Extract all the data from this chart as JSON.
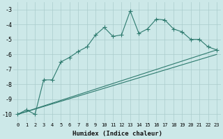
{
  "xlabel": "Humidex (Indice chaleur)",
  "bg_color": "#cce8e8",
  "grid_color": "#aacccc",
  "line_color": "#2d7a6e",
  "xlim": [
    -0.5,
    23.5
  ],
  "ylim": [
    -10.5,
    -2.5
  ],
  "yticks": [
    -10,
    -9,
    -8,
    -7,
    -6,
    -5,
    -4,
    -3
  ],
  "xticks": [
    0,
    1,
    2,
    3,
    4,
    5,
    6,
    7,
    8,
    9,
    10,
    11,
    12,
    13,
    14,
    15,
    16,
    17,
    18,
    19,
    20,
    21,
    22,
    23
  ],
  "series1_x": [
    0,
    1,
    2,
    3,
    4,
    5,
    6,
    7,
    8,
    9,
    10,
    11,
    12,
    13,
    14,
    15,
    16,
    17,
    18,
    19,
    20,
    21,
    22,
    23
  ],
  "series1_y": [
    -10.0,
    -9.7,
    -10.0,
    -7.7,
    -7.7,
    -6.5,
    -6.2,
    -5.8,
    -5.5,
    -4.7,
    -4.2,
    -4.8,
    -4.7,
    -3.1,
    -4.6,
    -4.3,
    -3.65,
    -3.7,
    -4.3,
    -4.5,
    -5.0,
    -5.0,
    -5.5,
    -5.7
  ],
  "series2_x": [
    0,
    23
  ],
  "series2_y": [
    -10.0,
    -5.7
  ],
  "series3_x": [
    0,
    23
  ],
  "series3_y": [
    -10.0,
    -6.0
  ]
}
